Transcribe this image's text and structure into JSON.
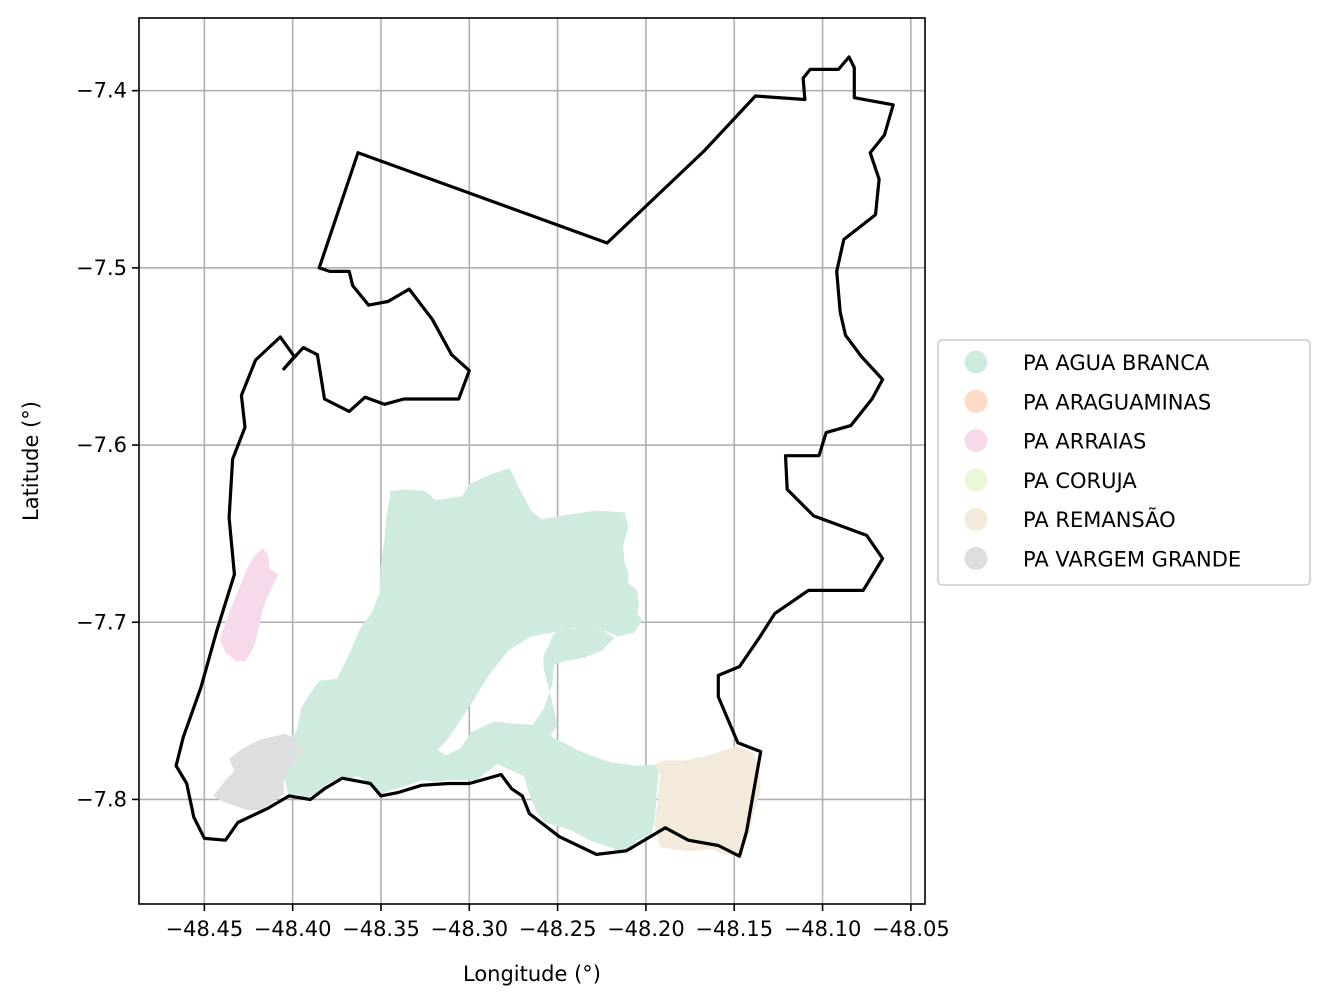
{
  "chart_data": {
    "type": "map",
    "xlabel": "Longitude (°)",
    "ylabel": "Latitude (°)",
    "xlim": [
      -48.487,
      -48.042
    ],
    "ylim": [
      -7.859,
      -7.359
    ],
    "grid": true,
    "legend_position": "right",
    "x_ticks": [
      {
        "value": -48.45,
        "label": "−48.45"
      },
      {
        "value": -48.4,
        "label": "−48.40"
      },
      {
        "value": -48.35,
        "label": "−48.35"
      },
      {
        "value": -48.3,
        "label": "−48.30"
      },
      {
        "value": -48.25,
        "label": "−48.25"
      },
      {
        "value": -48.2,
        "label": "−48.20"
      },
      {
        "value": -48.15,
        "label": "−48.15"
      },
      {
        "value": -48.1,
        "label": "−48.10"
      },
      {
        "value": -48.05,
        "label": "−48.05"
      }
    ],
    "y_ticks": [
      {
        "value": -7.4,
        "label": "−7.4"
      },
      {
        "value": -7.5,
        "label": "−7.5"
      },
      {
        "value": -7.6,
        "label": "−7.6"
      },
      {
        "value": -7.7,
        "label": "−7.7"
      },
      {
        "value": -7.8,
        "label": "−7.8"
      }
    ],
    "regions": [
      {
        "name": "PA AGUA BRANCA",
        "color": "#cfebdd",
        "polygon": [
          [
            -48.325,
            -7.626
          ],
          [
            -48.319,
            -7.631
          ],
          [
            -48.304,
            -7.629
          ],
          [
            -48.3,
            -7.622
          ],
          [
            -48.289,
            -7.617
          ],
          [
            -48.277,
            -7.613
          ],
          [
            -48.272,
            -7.624
          ],
          [
            -48.265,
            -7.637
          ],
          [
            -48.259,
            -7.642
          ],
          [
            -48.243,
            -7.639
          ],
          [
            -48.228,
            -7.637
          ],
          [
            -48.212,
            -7.638
          ],
          [
            -48.21,
            -7.646
          ],
          [
            -48.213,
            -7.657
          ],
          [
            -48.212,
            -7.666
          ],
          [
            -48.21,
            -7.672
          ],
          [
            -48.21,
            -7.678
          ],
          [
            -48.205,
            -7.682
          ],
          [
            -48.204,
            -7.69
          ],
          [
            -48.205,
            -7.695
          ],
          [
            -48.202,
            -7.699
          ],
          [
            -48.207,
            -7.706
          ],
          [
            -48.216,
            -7.708
          ],
          [
            -48.227,
            -7.703
          ],
          [
            -48.24,
            -7.703
          ],
          [
            -48.252,
            -7.706
          ],
          [
            -48.255,
            -7.713
          ],
          [
            -48.258,
            -7.719
          ],
          [
            -48.258,
            -7.726
          ],
          [
            -48.254,
            -7.741
          ],
          [
            -48.25,
            -7.758
          ],
          [
            -48.254,
            -7.764
          ],
          [
            -48.237,
            -7.773
          ],
          [
            -48.22,
            -7.779
          ],
          [
            -48.205,
            -7.781
          ],
          [
            -48.19,
            -7.78
          ],
          [
            -48.193,
            -7.785
          ],
          [
            -48.195,
            -7.812
          ],
          [
            -48.197,
            -7.82
          ],
          [
            -48.205,
            -7.823
          ],
          [
            -48.209,
            -7.828
          ],
          [
            -48.214,
            -7.83
          ],
          [
            -48.22,
            -7.827
          ],
          [
            -48.232,
            -7.823
          ],
          [
            -48.243,
            -7.817
          ],
          [
            -48.257,
            -7.813
          ],
          [
            -48.262,
            -7.807
          ],
          [
            -48.266,
            -7.797
          ],
          [
            -48.269,
            -7.787
          ],
          [
            -48.284,
            -7.78
          ],
          [
            -48.296,
            -7.789
          ],
          [
            -48.31,
            -7.789
          ],
          [
            -48.32,
            -7.79
          ],
          [
            -48.327,
            -7.789
          ],
          [
            -48.332,
            -7.791
          ],
          [
            -48.338,
            -7.793
          ],
          [
            -48.345,
            -7.795
          ],
          [
            -48.35,
            -7.797
          ],
          [
            -48.356,
            -7.793
          ],
          [
            -48.362,
            -7.787
          ],
          [
            -48.368,
            -7.788
          ],
          [
            -48.372,
            -7.787
          ],
          [
            -48.38,
            -7.791
          ],
          [
            -48.385,
            -7.796
          ],
          [
            -48.393,
            -7.799
          ],
          [
            -48.398,
            -7.797
          ],
          [
            -48.402,
            -7.799
          ],
          [
            -48.408,
            -7.775
          ],
          [
            -48.41,
            -7.77
          ],
          [
            -48.405,
            -7.767
          ],
          [
            -48.398,
            -7.762
          ],
          [
            -48.395,
            -7.748
          ],
          [
            -48.39,
            -7.74
          ],
          [
            -48.385,
            -7.733
          ],
          [
            -48.375,
            -7.732
          ],
          [
            -48.368,
            -7.718
          ],
          [
            -48.362,
            -7.704
          ],
          [
            -48.355,
            -7.694
          ],
          [
            -48.351,
            -7.684
          ],
          [
            -48.35,
            -7.668
          ],
          [
            -48.348,
            -7.653
          ],
          [
            -48.347,
            -7.64
          ],
          [
            -48.345,
            -7.63
          ],
          [
            -48.345,
            -7.626
          ],
          [
            -48.336,
            -7.625
          ]
        ],
        "hole": [
          [
            -48.226,
            -7.703
          ],
          [
            -48.218,
            -7.709
          ],
          [
            -48.225,
            -7.716
          ],
          [
            -48.235,
            -7.72
          ],
          [
            -48.246,
            -7.722
          ],
          [
            -48.252,
            -7.724
          ],
          [
            -48.253,
            -7.735
          ],
          [
            -48.258,
            -7.749
          ],
          [
            -48.264,
            -7.758
          ],
          [
            -48.276,
            -7.757
          ],
          [
            -48.286,
            -7.756
          ],
          [
            -48.299,
            -7.762
          ],
          [
            -48.305,
            -7.771
          ],
          [
            -48.313,
            -7.775
          ],
          [
            -48.318,
            -7.772
          ],
          [
            -48.313,
            -7.767
          ],
          [
            -48.306,
            -7.757
          ],
          [
            -48.297,
            -7.743
          ],
          [
            -48.289,
            -7.73
          ],
          [
            -48.278,
            -7.716
          ],
          [
            -48.265,
            -7.708
          ],
          [
            -48.249,
            -7.705
          ],
          [
            -48.238,
            -7.703
          ]
        ]
      },
      {
        "name": "PA ARAGUAMINAS",
        "color": "#fcdcc4",
        "polygon": []
      },
      {
        "name": "PA ARRAIAS",
        "color": "#f6d9ea",
        "polygon": [
          [
            -48.422,
            -7.663
          ],
          [
            -48.417,
            -7.658
          ],
          [
            -48.414,
            -7.662
          ],
          [
            -48.413,
            -7.67
          ],
          [
            -48.408,
            -7.673
          ],
          [
            -48.41,
            -7.677
          ],
          [
            -48.414,
            -7.685
          ],
          [
            -48.417,
            -7.693
          ],
          [
            -48.419,
            -7.702
          ],
          [
            -48.421,
            -7.711
          ],
          [
            -48.423,
            -7.716
          ],
          [
            -48.427,
            -7.722
          ],
          [
            -48.432,
            -7.722
          ],
          [
            -48.438,
            -7.717
          ],
          [
            -48.441,
            -7.71
          ],
          [
            -48.438,
            -7.7
          ],
          [
            -48.434,
            -7.69
          ],
          [
            -48.43,
            -7.68
          ],
          [
            -48.426,
            -7.67
          ]
        ]
      },
      {
        "name": "PA CORUJA",
        "color": "#eaf7d9",
        "polygon": []
      },
      {
        "name": "PA REMANSÃO",
        "color": "#f4eadc",
        "polygon": [
          [
            -48.195,
            -7.78
          ],
          [
            -48.19,
            -7.778
          ],
          [
            -48.179,
            -7.778
          ],
          [
            -48.168,
            -7.776
          ],
          [
            -48.161,
            -7.774
          ],
          [
            -48.155,
            -7.772
          ],
          [
            -48.148,
            -7.77
          ],
          [
            -48.139,
            -7.774
          ],
          [
            -48.136,
            -7.783
          ],
          [
            -48.135,
            -7.795
          ],
          [
            -48.139,
            -7.807
          ],
          [
            -48.141,
            -7.817
          ],
          [
            -48.144,
            -7.826
          ],
          [
            -48.148,
            -7.832
          ],
          [
            -48.156,
            -7.831
          ],
          [
            -48.163,
            -7.828
          ],
          [
            -48.171,
            -7.829
          ],
          [
            -48.178,
            -7.829
          ],
          [
            -48.185,
            -7.828
          ],
          [
            -48.192,
            -7.827
          ],
          [
            -48.195,
            -7.815
          ],
          [
            -48.193,
            -7.796
          ],
          [
            -48.192,
            -7.786
          ]
        ]
      },
      {
        "name": "PA VARGEM GRANDE",
        "color": "#dedede",
        "polygon": [
          [
            -48.428,
            -7.771
          ],
          [
            -48.418,
            -7.766
          ],
          [
            -48.404,
            -7.763
          ],
          [
            -48.399,
            -7.766
          ],
          [
            -48.394,
            -7.773
          ],
          [
            -48.399,
            -7.777
          ],
          [
            -48.405,
            -7.789
          ],
          [
            -48.405,
            -7.797
          ],
          [
            -48.412,
            -7.802
          ],
          [
            -48.418,
            -7.806
          ],
          [
            -48.426,
            -7.806
          ],
          [
            -48.434,
            -7.803
          ],
          [
            -48.44,
            -7.801
          ],
          [
            -48.445,
            -7.798
          ],
          [
            -48.441,
            -7.793
          ],
          [
            -48.437,
            -7.788
          ],
          [
            -48.433,
            -7.784
          ],
          [
            -48.436,
            -7.777
          ]
        ]
      }
    ],
    "boundary": [
      [
        -48.385,
        -7.5
      ],
      [
        -48.363,
        -7.435
      ],
      [
        -48.222,
        -7.486
      ],
      [
        -48.167,
        -7.434
      ],
      [
        -48.138,
        -7.403
      ],
      [
        -48.11,
        -7.405
      ],
      [
        -48.111,
        -7.393
      ],
      [
        -48.107,
        -7.388
      ],
      [
        -48.091,
        -7.388
      ],
      [
        -48.085,
        -7.381
      ],
      [
        -48.082,
        -7.387
      ],
      [
        -48.082,
        -7.404
      ],
      [
        -48.06,
        -7.408
      ],
      [
        -48.065,
        -7.425
      ],
      [
        -48.073,
        -7.435
      ],
      [
        -48.068,
        -7.45
      ],
      [
        -48.07,
        -7.47
      ],
      [
        -48.088,
        -7.484
      ],
      [
        -48.092,
        -7.502
      ],
      [
        -48.09,
        -7.525
      ],
      [
        -48.087,
        -7.538
      ],
      [
        -48.078,
        -7.55
      ],
      [
        -48.066,
        -7.563
      ],
      [
        -48.072,
        -7.574
      ],
      [
        -48.084,
        -7.589
      ],
      [
        -48.098,
        -7.593
      ],
      [
        -48.102,
        -7.606
      ],
      [
        -48.121,
        -7.606
      ],
      [
        -48.12,
        -7.625
      ],
      [
        -48.105,
        -7.64
      ],
      [
        -48.075,
        -7.651
      ],
      [
        -48.066,
        -7.664
      ],
      [
        -48.077,
        -7.682
      ],
      [
        -48.108,
        -7.682
      ],
      [
        -48.127,
        -7.695
      ],
      [
        -48.136,
        -7.709
      ],
      [
        -48.147,
        -7.725
      ],
      [
        -48.159,
        -7.73
      ],
      [
        -48.159,
        -7.742
      ],
      [
        -48.148,
        -7.768
      ],
      [
        -48.135,
        -7.773
      ],
      [
        -48.14,
        -7.801
      ],
      [
        -48.143,
        -7.818
      ],
      [
        -48.147,
        -7.832
      ],
      [
        -48.159,
        -7.826
      ],
      [
        -48.176,
        -7.823
      ],
      [
        -48.189,
        -7.816
      ],
      [
        -48.211,
        -7.829
      ],
      [
        -48.228,
        -7.831
      ],
      [
        -48.249,
        -7.821
      ],
      [
        -48.266,
        -7.808
      ],
      [
        -48.27,
        -7.798
      ],
      [
        -48.276,
        -7.794
      ],
      [
        -48.282,
        -7.786
      ],
      [
        -48.3,
        -7.791
      ],
      [
        -48.312,
        -7.791
      ],
      [
        -48.327,
        -7.792
      ],
      [
        -48.34,
        -7.796
      ],
      [
        -48.35,
        -7.798
      ],
      [
        -48.356,
        -7.791
      ],
      [
        -48.372,
        -7.788
      ],
      [
        -48.382,
        -7.794
      ],
      [
        -48.39,
        -7.8
      ],
      [
        -48.402,
        -7.798
      ],
      [
        -48.414,
        -7.805
      ],
      [
        -48.431,
        -7.813
      ],
      [
        -48.438,
        -7.823
      ],
      [
        -48.45,
        -7.822
      ],
      [
        -48.456,
        -7.81
      ],
      [
        -48.46,
        -7.791
      ],
      [
        -48.466,
        -7.781
      ],
      [
        -48.462,
        -7.765
      ],
      [
        -48.452,
        -7.737
      ],
      [
        -48.443,
        -7.705
      ],
      [
        -48.433,
        -7.673
      ],
      [
        -48.436,
        -7.641
      ],
      [
        -48.434,
        -7.608
      ],
      [
        -48.427,
        -7.59
      ],
      [
        -48.429,
        -7.572
      ],
      [
        -48.421,
        -7.552
      ],
      [
        -48.407,
        -7.539
      ],
      [
        -48.399,
        -7.55
      ],
      [
        -48.405,
        -7.557
      ],
      [
        -48.394,
        -7.545
      ],
      [
        -48.386,
        -7.549
      ],
      [
        -48.382,
        -7.574
      ],
      [
        -48.368,
        -7.581
      ],
      [
        -48.359,
        -7.573
      ],
      [
        -48.348,
        -7.577
      ],
      [
        -48.337,
        -7.574
      ],
      [
        -48.317,
        -7.574
      ],
      [
        -48.306,
        -7.574
      ],
      [
        -48.3,
        -7.558
      ],
      [
        -48.31,
        -7.549
      ],
      [
        -48.321,
        -7.529
      ],
      [
        -48.334,
        -7.512
      ],
      [
        -48.346,
        -7.519
      ],
      [
        -48.357,
        -7.521
      ],
      [
        -48.366,
        -7.51
      ],
      [
        -48.368,
        -7.502
      ],
      [
        -48.379,
        -7.502
      ]
    ]
  },
  "legend": [
    {
      "label": "PA AGUA BRANCA",
      "color": "#cfebdd"
    },
    {
      "label": "PA ARAGUAMINAS",
      "color": "#fcdcc4"
    },
    {
      "label": "PA ARRAIAS",
      "color": "#f6d9ea"
    },
    {
      "label": "PA CORUJA",
      "color": "#eaf7d9"
    },
    {
      "label": "PA REMANSÃO",
      "color": "#f4eadc"
    },
    {
      "label": "PA VARGEM GRANDE",
      "color": "#dedede"
    }
  ]
}
